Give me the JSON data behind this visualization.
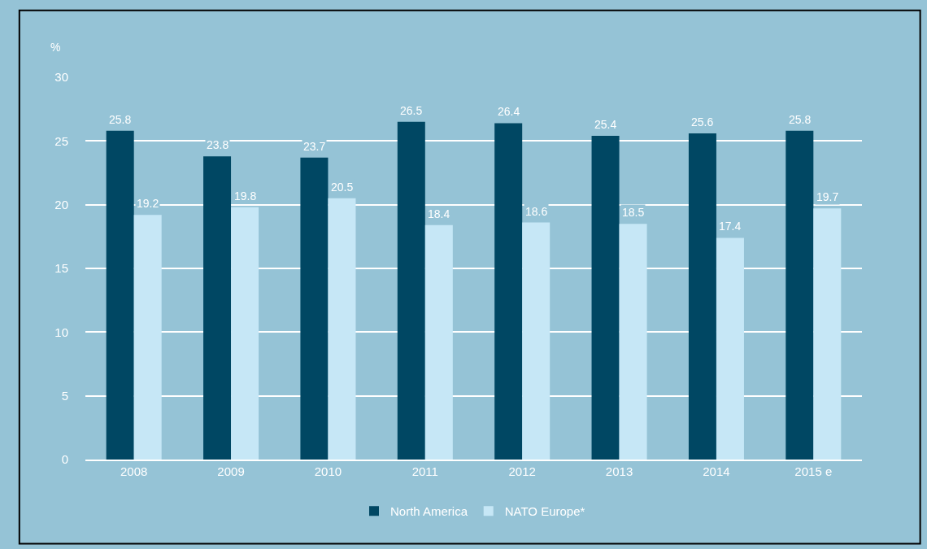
{
  "chart_data": {
    "type": "bar",
    "ylabel": "%",
    "categories": [
      "2008",
      "2009",
      "2010",
      "2011",
      "2012",
      "2013",
      "2014",
      "2015 e"
    ],
    "series": [
      {
        "name": "North America",
        "color": "#004763",
        "values": [
          25.8,
          23.8,
          23.7,
          26.5,
          26.4,
          25.4,
          25.6,
          25.8
        ]
      },
      {
        "name": "NATO Europe*",
        "color": "#c6e7f6",
        "values": [
          19.2,
          19.8,
          20.5,
          18.4,
          18.6,
          18.5,
          17.4,
          19.7
        ]
      }
    ],
    "ylim": [
      0,
      30
    ],
    "yticks": [
      0,
      5,
      10,
      15,
      20,
      25,
      30
    ],
    "grid": "y",
    "legend": "bottom",
    "data_labels": true
  }
}
